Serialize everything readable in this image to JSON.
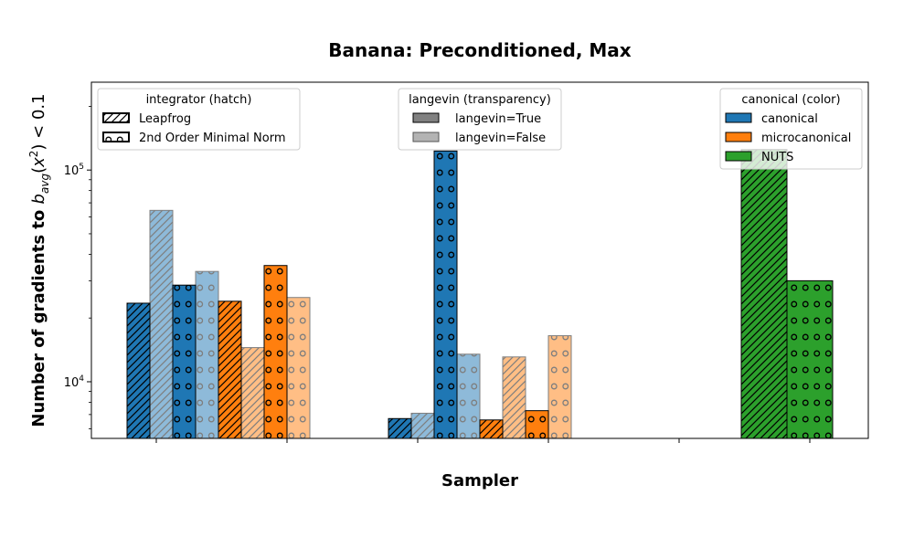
{
  "chart_data": {
    "type": "bar",
    "title": "Banana: Preconditioned, Max",
    "xlabel": "Sampler",
    "ylabel": "Number of gradients to b_avg(x²) < 0.1",
    "yscale": "log",
    "ylim": [
      5400,
      260000
    ],
    "y_tick_labels": [
      "10^4",
      "10^5"
    ],
    "x_tick_labels": [],
    "groups": 3,
    "series": [
      {
        "group": 0,
        "integrator": "Leapfrog",
        "canonical": "canonical",
        "langevin": true,
        "value": 23500
      },
      {
        "group": 0,
        "integrator": "Leapfrog",
        "canonical": "canonical",
        "langevin": false,
        "value": 64500
      },
      {
        "group": 0,
        "integrator": "2nd Order Minimal Norm",
        "canonical": "canonical",
        "langevin": true,
        "value": 28600
      },
      {
        "group": 0,
        "integrator": "2nd Order Minimal Norm",
        "canonical": "canonical",
        "langevin": false,
        "value": 33200
      },
      {
        "group": 0,
        "integrator": "Leapfrog",
        "canonical": "microcanonical",
        "langevin": true,
        "value": 24000
      },
      {
        "group": 0,
        "integrator": "Leapfrog",
        "canonical": "microcanonical",
        "langevin": false,
        "value": 14500
      },
      {
        "group": 0,
        "integrator": "2nd Order Minimal Norm",
        "canonical": "microcanonical",
        "langevin": true,
        "value": 35400
      },
      {
        "group": 0,
        "integrator": "2nd Order Minimal Norm",
        "canonical": "microcanonical",
        "langevin": false,
        "value": 25000
      },
      {
        "group": 1,
        "integrator": "Leapfrog",
        "canonical": "canonical",
        "langevin": true,
        "value": 6700
      },
      {
        "group": 1,
        "integrator": "Leapfrog",
        "canonical": "canonical",
        "langevin": false,
        "value": 7100
      },
      {
        "group": 1,
        "integrator": "2nd Order Minimal Norm",
        "canonical": "canonical",
        "langevin": true,
        "value": 123000
      },
      {
        "group": 1,
        "integrator": "2nd Order Minimal Norm",
        "canonical": "canonical",
        "langevin": false,
        "value": 13500
      },
      {
        "group": 1,
        "integrator": "Leapfrog",
        "canonical": "microcanonical",
        "langevin": true,
        "value": 6600
      },
      {
        "group": 1,
        "integrator": "Leapfrog",
        "canonical": "microcanonical",
        "langevin": false,
        "value": 13100
      },
      {
        "group": 1,
        "integrator": "2nd Order Minimal Norm",
        "canonical": "microcanonical",
        "langevin": true,
        "value": 7300
      },
      {
        "group": 1,
        "integrator": "2nd Order Minimal Norm",
        "canonical": "microcanonical",
        "langevin": false,
        "value": 16500
      },
      {
        "group": 2,
        "integrator": "Leapfrog",
        "canonical": "NUTS",
        "langevin": true,
        "value": 125000
      },
      {
        "group": 2,
        "integrator": "2nd Order Minimal Norm",
        "canonical": "NUTS",
        "langevin": true,
        "value": 30000
      }
    ],
    "legends": [
      {
        "title": "integrator (hatch)",
        "position": "top-left",
        "entries": [
          "Leapfrog",
          "2nd Order Minimal Norm"
        ]
      },
      {
        "title": "langevin (transparency)",
        "position": "top-center",
        "entries": [
          "langevin=True",
          "langevin=False"
        ]
      },
      {
        "title": "canonical (color)",
        "position": "top-right",
        "entries": [
          "canonical",
          "microcanonical",
          "NUTS"
        ]
      }
    ],
    "colors": {
      "canonical": "#1f77b4",
      "microcanonical": "#ff7f0e",
      "NUTS": "#2ca02c"
    },
    "grid": false
  }
}
